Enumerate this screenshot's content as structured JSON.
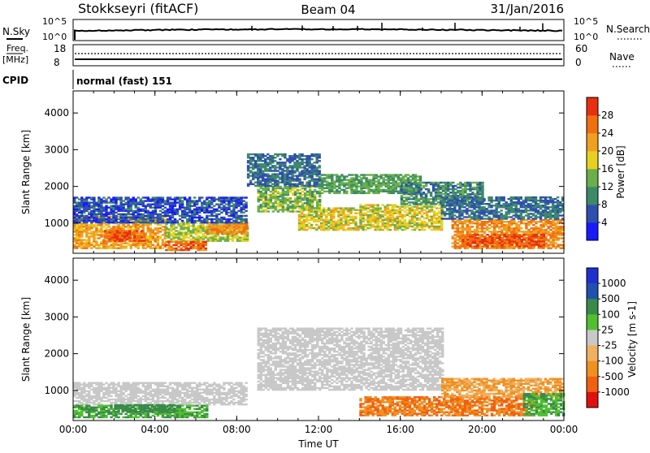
{
  "header": {
    "station": "Stokkseyri (fitACF)",
    "beam": "Beam 04",
    "date": "31/Jan/2016"
  },
  "strips": {
    "nsky": {
      "label": "N.Sky",
      "scale_top": "10^5",
      "scale_bottom": "10^0",
      "right_label": "N.Search",
      "right_top": "10^5",
      "right_bottom": "10^0"
    },
    "freq": {
      "label_1": "Freq.",
      "label_2": "[MHz]",
      "tick_top": "18",
      "tick_bottom": "8",
      "right_label": "Nave",
      "right_top": "60",
      "right_bottom": "0"
    },
    "cpid": {
      "label": "CPID",
      "value": "normal (fast) 151"
    }
  },
  "colors": {
    "power": [
      "#1a1aff",
      "#2f4fb0",
      "#3c8a68",
      "#6ab04a",
      "#e8d020",
      "#f0a020",
      "#f07010",
      "#e83010"
    ],
    "velocity": [
      "#e01010",
      "#f06010",
      "#f09020",
      "#f0b060",
      "#c8c8c8",
      "#50c030",
      "#3a8a4a",
      "#2050b0",
      "#2030d0"
    ],
    "ground_scatter": "#c8c8c8"
  },
  "chart_data": [
    {
      "type": "heatmap",
      "name": "power",
      "x_ticks": [
        "00:00",
        "04:00",
        "08:00",
        "12:00",
        "16:00",
        "20:00",
        "00:00"
      ],
      "xlabel": "",
      "ylabel": "Slant Range [km]",
      "y_ticks": [
        "1000",
        "2000",
        "3000",
        "4000"
      ],
      "xlim": [
        0,
        24
      ],
      "ylim": [
        180,
        4600
      ],
      "colorbar": {
        "label": "Power [dB]",
        "ticks": [
          "4",
          "8",
          "12",
          "16",
          "20",
          "24",
          "28"
        ],
        "range": [
          0,
          32
        ]
      },
      "regions": [
        {
          "t0": 0,
          "t1": 4.5,
          "r0": 300,
          "r1": 1200,
          "level": 22
        },
        {
          "t0": 1.5,
          "t1": 3.5,
          "r0": 500,
          "r1": 800,
          "level": 28
        },
        {
          "t0": 4.5,
          "t1": 8.5,
          "r0": 500,
          "r1": 1000,
          "level": 16
        },
        {
          "t0": 6.5,
          "t1": 8.5,
          "r0": 700,
          "r1": 1000,
          "level": 24
        },
        {
          "t0": 4.5,
          "t1": 6.5,
          "r0": 250,
          "r1": 500,
          "level": 26
        },
        {
          "t0": 0,
          "t1": 8.5,
          "r0": 1000,
          "r1": 1700,
          "level": 6
        },
        {
          "t0": 9,
          "t1": 12,
          "r0": 1300,
          "r1": 2000,
          "level": 14
        },
        {
          "t0": 11,
          "t1": 14,
          "r0": 800,
          "r1": 1400,
          "level": 18
        },
        {
          "t0": 14,
          "t1": 18,
          "r0": 800,
          "r1": 1500,
          "level": 18
        },
        {
          "t0": 12,
          "t1": 17,
          "r0": 1800,
          "r1": 2300,
          "level": 12
        },
        {
          "t0": 8.5,
          "t1": 12,
          "r0": 2000,
          "r1": 2900,
          "level": 8
        },
        {
          "t0": 16,
          "t1": 20,
          "r0": 1500,
          "r1": 2100,
          "level": 10
        },
        {
          "t0": 18.5,
          "t1": 24,
          "r0": 300,
          "r1": 1100,
          "level": 24
        },
        {
          "t0": 19,
          "t1": 23,
          "r0": 350,
          "r1": 700,
          "level": 28
        },
        {
          "t0": 18,
          "t1": 24,
          "r0": 1100,
          "r1": 1700,
          "level": 8
        }
      ]
    },
    {
      "type": "heatmap",
      "name": "velocity",
      "x_ticks": [
        "00:00",
        "04:00",
        "08:00",
        "12:00",
        "16:00",
        "20:00",
        "00:00"
      ],
      "xlabel": "Time UT",
      "ylabel": "Slant Range [km]",
      "y_ticks": [
        "1000",
        "2000",
        "3000",
        "4000"
      ],
      "xlim": [
        0,
        24
      ],
      "ylim": [
        180,
        4600
      ],
      "colorbar": {
        "label": "Velocity [m s-1]",
        "ticks": [
          "1000",
          "500",
          "100",
          "25",
          "-25",
          "-100",
          "-500",
          "-1000"
        ]
      },
      "regions": [
        {
          "t0": 0,
          "t1": 8.5,
          "r0": 600,
          "r1": 1200,
          "class": "gs"
        },
        {
          "t0": 0,
          "t1": 6.5,
          "r0": 250,
          "r1": 600,
          "class": "v_pos_low"
        },
        {
          "t0": 2,
          "t1": 5,
          "r0": 400,
          "r1": 600,
          "class": "v_pos_mid"
        },
        {
          "t0": 9,
          "t1": 18,
          "r0": 1000,
          "r1": 2700,
          "class": "gs"
        },
        {
          "t0": 14,
          "t1": 18.5,
          "r0": 300,
          "r1": 800,
          "class": "v_neg_high"
        },
        {
          "t0": 18.5,
          "t1": 22.5,
          "r0": 300,
          "r1": 800,
          "class": "v_neg_high"
        },
        {
          "t0": 18,
          "t1": 24,
          "r0": 800,
          "r1": 1300,
          "class": "v_neg_low"
        },
        {
          "t0": 22,
          "t1": 24,
          "r0": 300,
          "r1": 900,
          "class": "v_pos_low"
        }
      ]
    }
  ]
}
